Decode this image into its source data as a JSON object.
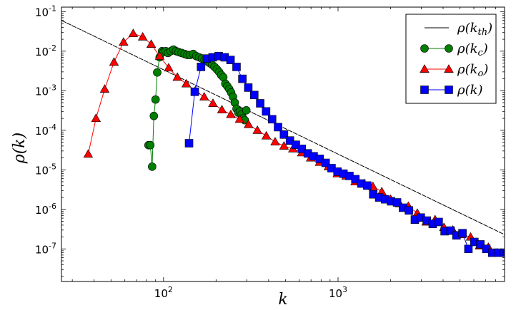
{
  "chart_data": {
    "type": "line",
    "xlabel": "k",
    "ylabel": "ρ(k)",
    "xscale": "log",
    "yscale": "log",
    "xlim": [
      26,
      9000
    ],
    "ylim": [
      1.5e-08,
      0.13
    ],
    "grid": false,
    "legend_position": "top-right",
    "x_ticks": [
      {
        "value": 100,
        "base": "10",
        "exp": "2"
      },
      {
        "value": 1000,
        "base": "10",
        "exp": "3"
      }
    ],
    "y_ticks": [
      {
        "value": 0.1,
        "base": "10",
        "exp": "-1"
      },
      {
        "value": 0.01,
        "base": "10",
        "exp": "-2"
      },
      {
        "value": 0.001,
        "base": "10",
        "exp": "-3"
      },
      {
        "value": 0.0001,
        "base": "10",
        "exp": "-4"
      },
      {
        "value": 1e-05,
        "base": "10",
        "exp": "-5"
      },
      {
        "value": 1e-06,
        "base": "10",
        "exp": "-6"
      },
      {
        "value": 1e-07,
        "base": "10",
        "exp": "-7"
      }
    ],
    "series": [
      {
        "name": "ρ(k_th)",
        "legend_main": "ρ(k",
        "legend_sub": "th",
        "style": "line",
        "color": "#000000",
        "x": [
          26,
          9000
        ],
        "y": [
          0.06,
          2.3e-07
        ]
      },
      {
        "name": "ρ(k_c)",
        "legend_main": "ρ(k",
        "legend_sub": "c",
        "style": "circle",
        "color": "#008000",
        "x": [
          82,
          84,
          86,
          88,
          90,
          92,
          95,
          98,
          100,
          103,
          106,
          110,
          114,
          118,
          122,
          127,
          132,
          137,
          142,
          148,
          154,
          160,
          166,
          172,
          178,
          184,
          190,
          196,
          202,
          208,
          214,
          220,
          226,
          232,
          238,
          244,
          250,
          256,
          262,
          268,
          274,
          280,
          286,
          292,
          298
        ],
        "y": [
          4.2e-05,
          4.2e-05,
          1.2e-05,
          0.00023,
          0.0006,
          0.0029,
          0.007,
          0.01,
          0.0095,
          0.01,
          0.009,
          0.01,
          0.011,
          0.01,
          0.0095,
          0.009,
          0.0085,
          0.008,
          0.008,
          0.0085,
          0.0075,
          0.007,
          0.0065,
          0.006,
          0.0055,
          0.005,
          0.0045,
          0.004,
          0.0035,
          0.003,
          0.0025,
          0.0022,
          0.0015,
          0.0013,
          0.0011,
          0.0009,
          0.0007,
          0.0005,
          0.00035,
          0.00028,
          0.0003,
          0.00025,
          0.0002,
          0.00018,
          0.00032
        ]
      },
      {
        "name": "ρ(k_o)",
        "legend_main": "ρ(k",
        "legend_sub": "o",
        "style": "triangle",
        "color": "#ff0000",
        "x": [
          37,
          41,
          46,
          52,
          59,
          67,
          76,
          85,
          95,
          107,
          120,
          135,
          152,
          171,
          192,
          216,
          243,
          273,
          307,
          345,
          388,
          436,
          490,
          551,
          620,
          697,
          784,
          881,
          991,
          1114,
          1253,
          1408,
          1584,
          1781,
          2002,
          2251,
          2531,
          2846,
          3200,
          3598,
          4045,
          4548,
          5114,
          5750,
          6465,
          7269,
          8173
        ],
        "y": [
          2.5e-05,
          0.0002,
          0.0011,
          0.0053,
          0.017,
          0.028,
          0.023,
          0.015,
          0.0075,
          0.0038,
          0.0022,
          0.0015,
          0.001,
          0.0007,
          0.00048,
          0.00033,
          0.00025,
          0.00019,
          0.00014,
          0.0001,
          7.2e-05,
          5.1e-05,
          4e-05,
          3.4e-05,
          2.7e-05,
          2e-05,
          1.55e-05,
          1.2e-05,
          8e-06,
          7e-06,
          5e-06,
          4.5e-06,
          3.8e-06,
          2.8e-06,
          1.8e-06,
          1.4e-06,
          1.2e-06,
          8e-07,
          4.8e-07,
          5.5e-07,
          3.5e-07,
          3e-07,
          2.3e-07,
          2e-07,
          1.2e-07,
          1.1e-07,
          8e-08
        ]
      },
      {
        "name": "ρ(k)",
        "legend_main": "ρ(k",
        "legend_sub": "",
        "style": "square",
        "color": "#0000ff",
        "x": [
          140,
          151,
          164,
          177,
          191,
          207,
          224,
          242,
          262,
          283,
          306,
          331,
          358,
          387,
          419,
          453,
          490,
          530,
          573,
          620,
          671,
          725,
          785,
          849,
          918,
          993,
          1074,
          1162,
          1257,
          1360,
          1471,
          1591,
          1721,
          1861,
          2013,
          2178,
          2356,
          2548,
          2756,
          2981,
          3225,
          3488,
          3773,
          4081,
          4415,
          4775,
          5165,
          5587,
          6044,
          6538,
          7072,
          7650,
          8275,
          8950
        ],
        "y": [
          4.7e-05,
          0.00094,
          0.004,
          0.0065,
          0.007,
          0.0075,
          0.007,
          0.006,
          0.004,
          0.002,
          0.0012,
          0.00078,
          0.00048,
          0.0003,
          0.00019,
          0.00012,
          7.8e-05,
          5.5e-05,
          4.3e-05,
          3.4e-05,
          2.6e-05,
          2.2e-05,
          1.9e-05,
          1.5e-05,
          1.1e-05,
          9e-06,
          8e-06,
          7e-06,
          5.8e-06,
          4.5e-06,
          4e-06,
          2.4e-06,
          2e-06,
          1.8e-06,
          1.6e-06,
          1.5e-06,
          1.1e-06,
          9.4e-07,
          5.5e-07,
          6.2e-07,
          5.2e-07,
          4.3e-07,
          4.8e-07,
          2.8e-07,
          2.9e-07,
          2.2e-07,
          2.5e-07,
          1e-07,
          1.5e-07,
          1.3e-07,
          1e-07,
          8e-08,
          8e-08,
          8e-08
        ]
      }
    ]
  }
}
